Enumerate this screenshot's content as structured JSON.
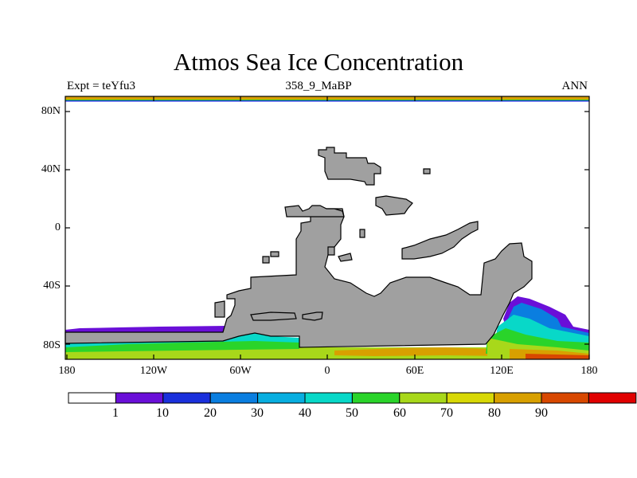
{
  "title": "Atmos Sea Ice Concentration",
  "subtitle_left": "Expt = teYfu3",
  "subtitle_center": "358_9_MaBP",
  "subtitle_right": "ANN",
  "lat_ticks": [
    "80N",
    "40N",
    "0",
    "40S",
    "80S"
  ],
  "lon_ticks": [
    "180",
    "120W",
    "60W",
    "0",
    "60E",
    "120E",
    "180"
  ],
  "colorbar": {
    "labels": [
      "1",
      "10",
      "20",
      "30",
      "40",
      "50",
      "60",
      "70",
      "80",
      "90"
    ],
    "colors": [
      "#ffffff",
      "#6a0fd8",
      "#1a30dc",
      "#0a7ee0",
      "#08aee0",
      "#08d8c8",
      "#2ad42a",
      "#a8d81a",
      "#d8d806",
      "#d8a000",
      "#d84800",
      "#e00000"
    ]
  },
  "colors": {
    "land": "#a0a0a0",
    "coast": "#000000",
    "ocean": "#ffffff"
  }
}
